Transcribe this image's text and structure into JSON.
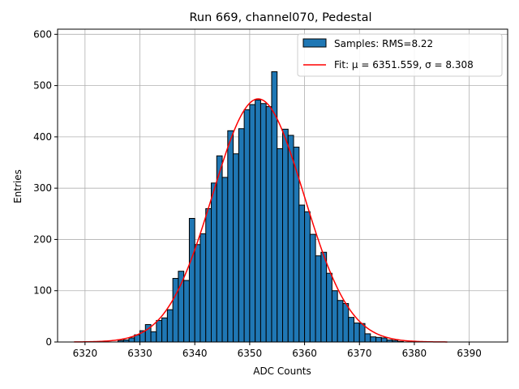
{
  "chart_data": {
    "type": "bar",
    "title": "Run 669, channel070, Pedestal",
    "xlabel": "ADC Counts",
    "ylabel": "Entries",
    "xlim": [
      6315,
      6397
    ],
    "ylim": [
      0,
      610
    ],
    "xticks": [
      6320,
      6330,
      6340,
      6350,
      6360,
      6370,
      6380,
      6390
    ],
    "yticks": [
      0,
      100,
      200,
      300,
      400,
      500,
      600
    ],
    "grid": true,
    "legend_position": "top-right",
    "bin_width": 1,
    "bins": {
      "x": [
        6326,
        6327,
        6328,
        6329,
        6330,
        6331,
        6332,
        6333,
        6334,
        6335,
        6336,
        6337,
        6338,
        6339,
        6340,
        6341,
        6342,
        6343,
        6344,
        6345,
        6346,
        6347,
        6348,
        6349,
        6350,
        6351,
        6352,
        6353,
        6354,
        6355,
        6356,
        6357,
        6358,
        6359,
        6360,
        6361,
        6362,
        6363,
        6364,
        6365,
        6366,
        6367,
        6368,
        6369,
        6370,
        6371,
        6372,
        6373,
        6374,
        6375,
        6376,
        6377
      ],
      "values": [
        3,
        4,
        8,
        14,
        22,
        34,
        20,
        42,
        47,
        63,
        124,
        138,
        120,
        241,
        190,
        211,
        260,
        310,
        363,
        321,
        412,
        367,
        416,
        453,
        463,
        472,
        465,
        459,
        527,
        377,
        415,
        403,
        380,
        267,
        254,
        210,
        168,
        175,
        134,
        100,
        81,
        75,
        48,
        37,
        36,
        16,
        10,
        9,
        8,
        4,
        3,
        1
      ]
    },
    "series": [
      {
        "name": "Samples: RMS=8.22",
        "kind": "histogram",
        "fill": "#1f77b4",
        "edge": "#000000"
      },
      {
        "name": "Fit: μ = 6351.559, σ = 8.308",
        "kind": "gaussian",
        "mu": 6351.559,
        "sigma": 8.308,
        "amplitude": 474,
        "x_range": [
          6318,
          6386
        ],
        "color": "#ff0000"
      }
    ]
  }
}
